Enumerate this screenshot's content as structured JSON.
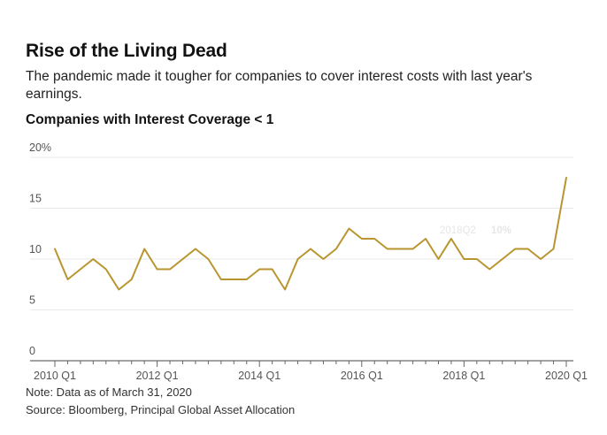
{
  "header": {
    "title": "Rise of the Living Dead",
    "subtitle": "The pandemic made it tougher for companies to cover interest costs with last year's earnings."
  },
  "chart_data": {
    "type": "line",
    "title": "Companies with Interest Coverage < 1",
    "x_tick_labels": [
      "2010 Q1",
      "2012 Q1",
      "2014 Q1",
      "2016 Q1",
      "2018 Q1",
      "2020 Q1"
    ],
    "y_tick_labels": [
      "0",
      "5",
      "10",
      "15",
      "20%"
    ],
    "ylim": [
      0,
      20
    ],
    "grid": true,
    "legend": "none",
    "line_color": "#b8952e",
    "series": [
      {
        "x": [
          "2010 Q1",
          "2010 Q2",
          "2010 Q3",
          "2010 Q4",
          "2011 Q1",
          "2011 Q2",
          "2011 Q3",
          "2011 Q4",
          "2012 Q1",
          "2012 Q2",
          "2012 Q3",
          "2012 Q4",
          "2013 Q1",
          "2013 Q2",
          "2013 Q3",
          "2013 Q4",
          "2014 Q1",
          "2014 Q2",
          "2014 Q3",
          "2014 Q4",
          "2015 Q1",
          "2015 Q2",
          "2015 Q3",
          "2015 Q4",
          "2016 Q1",
          "2016 Q2",
          "2016 Q3",
          "2016 Q4",
          "2017 Q1",
          "2017 Q2",
          "2017 Q3",
          "2017 Q4",
          "2018 Q1",
          "2018 Q2",
          "2018 Q3",
          "2018 Q4",
          "2019 Q1",
          "2019 Q2",
          "2019 Q3",
          "2019 Q4",
          "2020 Q1"
        ],
        "values": [
          11,
          8,
          9,
          10,
          9,
          7,
          8,
          11,
          9,
          9,
          10,
          11,
          10,
          8,
          8,
          8,
          9,
          9,
          7,
          10,
          11,
          10,
          11,
          13,
          12,
          12,
          11,
          11,
          11,
          12,
          10,
          12,
          10,
          10,
          9,
          10,
          11,
          11,
          10,
          11,
          18
        ]
      }
    ],
    "tooltip": {
      "label": "2018Q2",
      "value": "10%"
    }
  },
  "notes": {
    "note": "Note: Data as of March 31, 2020",
    "source": "Source: Bloomberg, Principal Global Asset Allocation"
  }
}
